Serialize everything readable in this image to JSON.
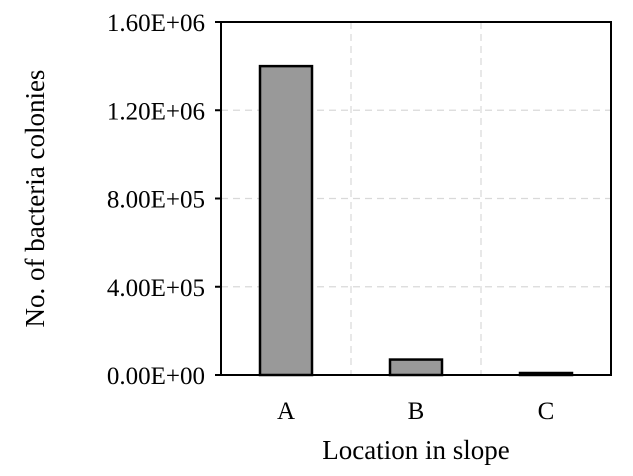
{
  "chart_data": {
    "type": "bar",
    "categories": [
      "A",
      "B",
      "C"
    ],
    "values": [
      1400000,
      70000,
      8000
    ],
    "title": "",
    "xlabel": "Location in slope",
    "ylabel": "No. of bacteria colonies",
    "ylim": [
      0,
      1600000
    ],
    "yticks": [
      0,
      400000,
      800000,
      1200000,
      1600000
    ],
    "ytick_labels": [
      "0.00E+00",
      "4.00E+05",
      "8.00E+05",
      "1.20E+06",
      "1.60E+06"
    ],
    "grid": true,
    "bar_color": "#999999",
    "bar_edge_color": "#000000",
    "grid_color": "#d9d9d9"
  }
}
